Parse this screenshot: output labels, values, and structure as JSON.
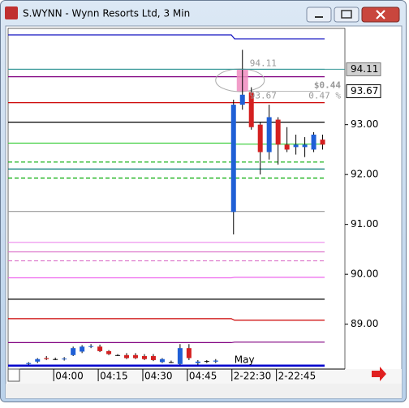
{
  "window": {
    "title": "S.WYNN - Wynn Resorts Ltd, 3 Min"
  },
  "chart_data": {
    "type": "candlestick",
    "xlim": [
      -2.3,
      35.5
    ],
    "ylim": [
      88.1,
      94.93
    ],
    "xticks": [
      {
        "value": 3,
        "label": "04:00"
      },
      {
        "value": 8,
        "label": "04:15"
      },
      {
        "value": 13,
        "label": "04:30"
      },
      {
        "value": 18,
        "label": "04:45"
      },
      {
        "value": 23,
        "label": "2-22:30"
      },
      {
        "value": 28,
        "label": "2-22:45"
      }
    ],
    "yticks": [
      {
        "value": 89,
        "label": "89.00"
      },
      {
        "value": 90,
        "label": "90.00"
      },
      {
        "value": 91,
        "label": "91.00"
      },
      {
        "value": 92,
        "label": "92.00"
      },
      {
        "value": 93,
        "label": "93.00"
      }
    ],
    "up_color": "#1f5fd6",
    "down_color": "#d42020",
    "x": [
      0,
      1,
      2,
      3,
      4,
      5,
      6,
      7,
      8,
      9,
      10,
      11,
      12,
      13,
      14,
      15,
      16,
      17,
      18,
      19,
      20,
      21,
      23,
      24,
      25,
      26,
      27,
      28,
      29,
      30,
      31,
      32,
      33
    ],
    "open": [
      88.2,
      88.25,
      88.32,
      88.3,
      88.3,
      88.38,
      88.45,
      88.55,
      88.55,
      88.46,
      88.38,
      88.38,
      88.38,
      88.36,
      88.36,
      88.24,
      88.24,
      88.2,
      88.52,
      88.22,
      88.26,
      88.25,
      91.25,
      93.4,
      93.65,
      93.0,
      92.45,
      93.1,
      92.6,
      92.55,
      92.55,
      92.5,
      92.7
    ],
    "high": [
      88.24,
      88.32,
      88.36,
      88.33,
      88.34,
      88.55,
      88.58,
      88.6,
      88.59,
      88.48,
      88.4,
      88.42,
      88.42,
      88.4,
      88.4,
      88.32,
      88.27,
      88.6,
      88.6,
      88.28,
      88.28,
      88.3,
      93.5,
      94.5,
      93.75,
      93.05,
      93.4,
      93.15,
      92.95,
      92.8,
      92.75,
      92.85,
      92.8
    ],
    "low": [
      88.18,
      88.22,
      88.28,
      88.28,
      88.27,
      88.36,
      88.42,
      88.52,
      88.44,
      88.38,
      88.36,
      88.3,
      88.3,
      88.28,
      88.26,
      88.22,
      88.22,
      88.18,
      88.28,
      88.18,
      88.22,
      88.22,
      90.8,
      93.3,
      92.9,
      92.0,
      92.3,
      92.2,
      92.45,
      92.4,
      92.35,
      92.45,
      92.5
    ],
    "close": [
      88.22,
      88.3,
      88.3,
      88.3,
      88.31,
      88.52,
      88.55,
      88.56,
      88.46,
      88.4,
      88.38,
      88.32,
      88.32,
      88.3,
      88.28,
      88.3,
      88.24,
      88.52,
      88.32,
      88.25,
      88.26,
      88.27,
      93.4,
      93.6,
      92.95,
      92.45,
      93.15,
      92.6,
      92.5,
      92.6,
      92.6,
      92.8,
      92.6
    ],
    "levels": [
      {
        "color": "#1010c0",
        "left": 94.8,
        "right": 94.72
      },
      {
        "color": "#3a9a9a",
        "left": 94.11,
        "right": 94.11
      },
      {
        "color": "#800080",
        "left": 93.96,
        "right": 93.96
      },
      {
        "color": "#cc0000",
        "left": 93.44,
        "right": 93.44
      },
      {
        "color": "#000000",
        "left": 93.05,
        "right": 93.05
      },
      {
        "color": "#33cc33",
        "left": 92.63,
        "right": 92.61
      },
      {
        "color": "#00aa00",
        "left": 92.25,
        "right": 92.25,
        "dashed": true
      },
      {
        "color": "#007777",
        "left": 92.11,
        "right": 92.11
      },
      {
        "color": "#00aa00",
        "left": 91.93,
        "right": 91.93,
        "dashed": true
      },
      {
        "color": "#999999",
        "left": 91.26,
        "right": 91.26
      },
      {
        "color": "#ee88ee",
        "left": 90.64,
        "right": 90.64
      },
      {
        "color": "#dd77cc",
        "left": 90.45,
        "right": 90.45
      },
      {
        "color": "#dd77cc",
        "left": 90.27,
        "right": 90.27,
        "dashed": true
      },
      {
        "color": "#ee66ee",
        "left": 89.93,
        "right": 89.94
      },
      {
        "color": "#000000",
        "left": 89.5,
        "right": 89.5
      },
      {
        "color": "#cc0000",
        "left": 89.11,
        "right": 89.08
      },
      {
        "color": "#800080",
        "left": 88.63,
        "right": 88.64
      },
      {
        "color": "#0000cc",
        "left": 88.17,
        "right": 88.17
      }
    ],
    "marker_price": 94.11,
    "last_price": 93.67,
    "measure": {
      "high": 94.11,
      "low": 93.67,
      "change": {
        "value": 0.44,
        "label": "$0.44"
      },
      "percent": {
        "value": 0.47,
        "label": "0.47 %"
      }
    },
    "session_label": "May"
  }
}
